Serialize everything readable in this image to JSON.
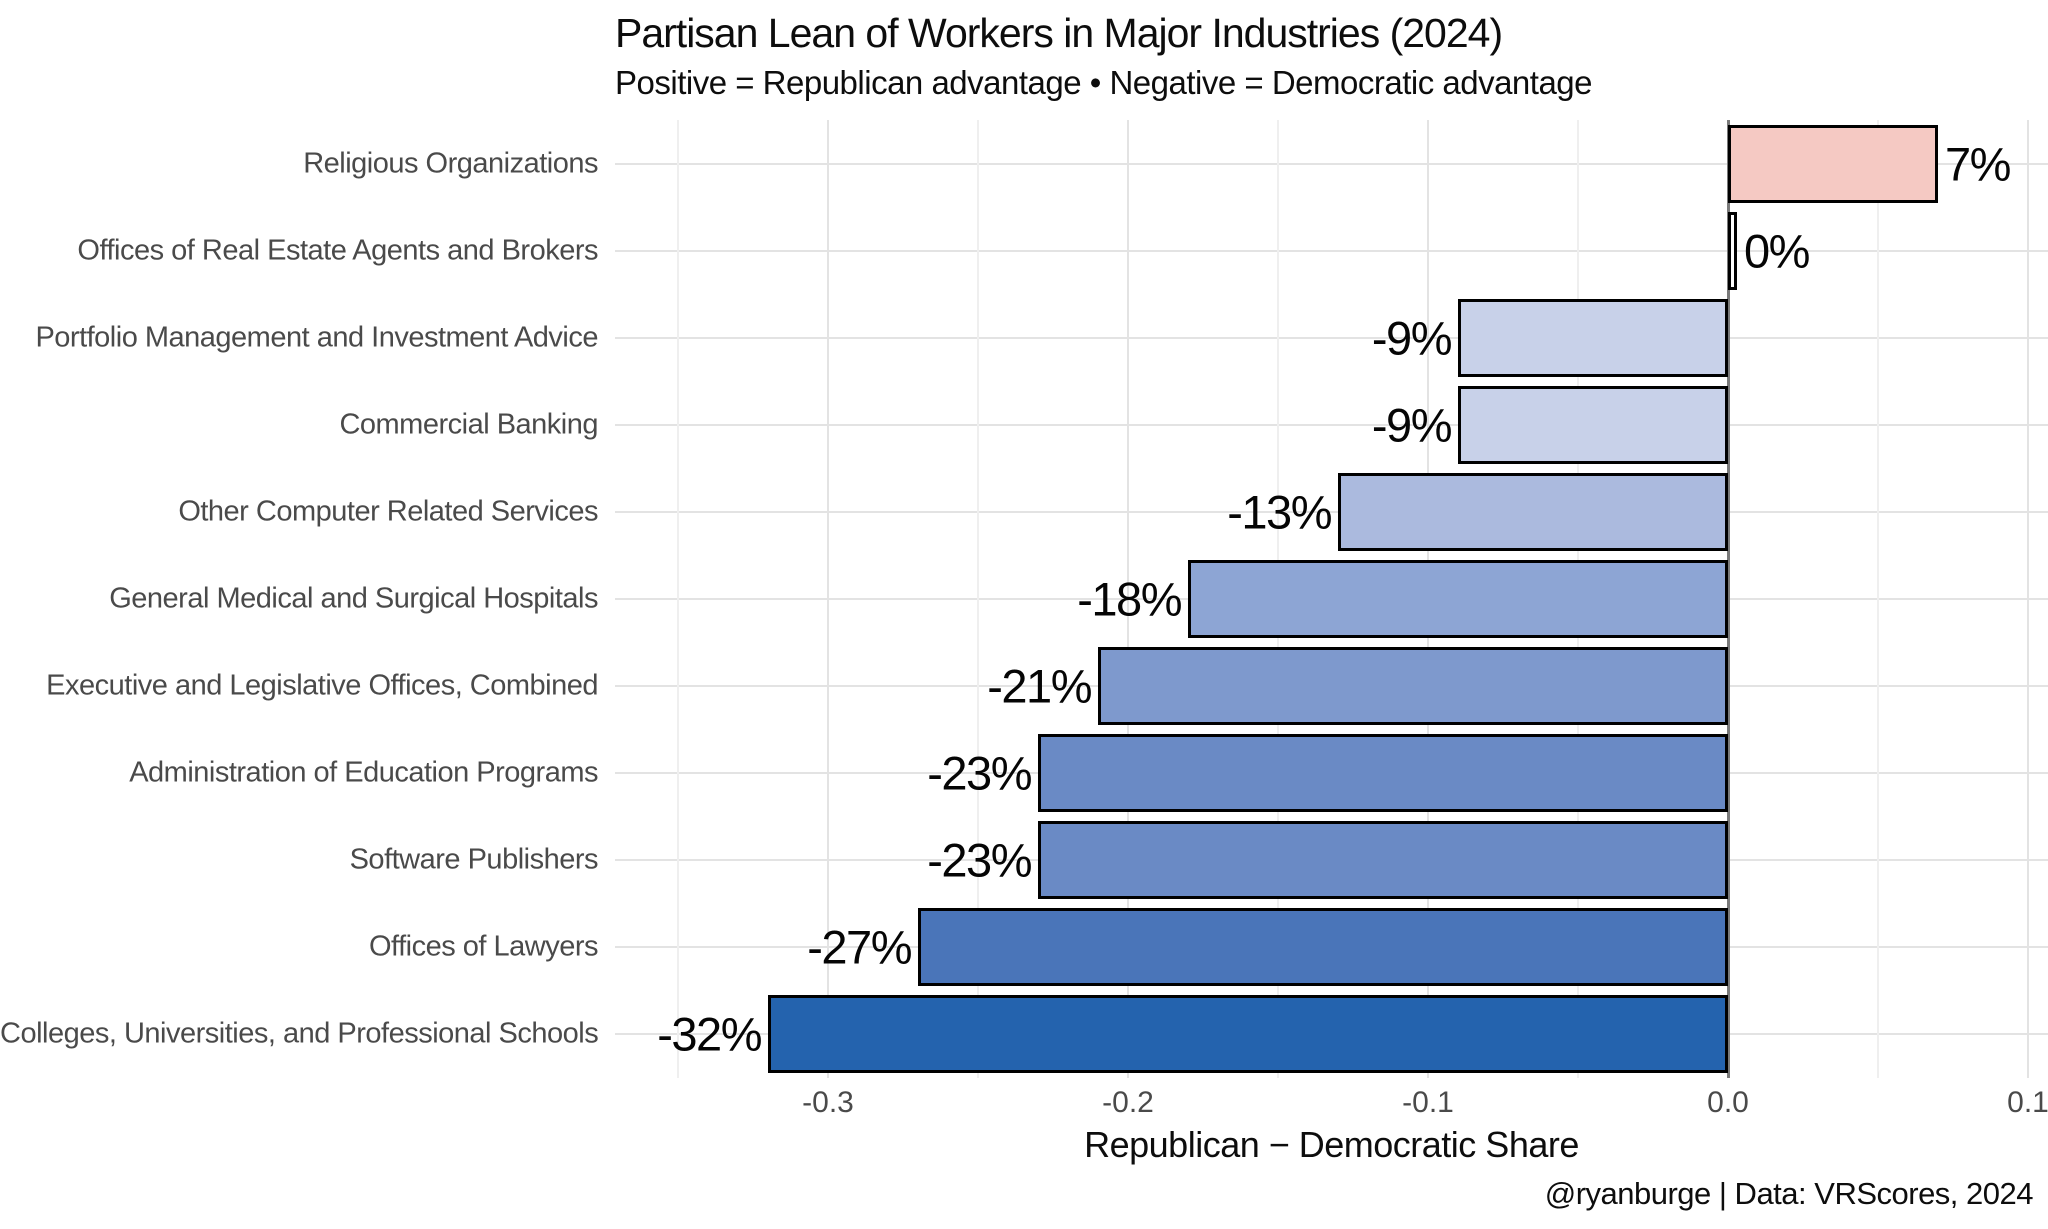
{
  "title": "Partisan Lean of Workers in Major Industries (2024)",
  "subtitle": "Positive = Republican advantage • Negative = Democratic advantage",
  "footer": "@ryanburge | Data: VRScores, 2024",
  "colors": {
    "background": "#ffffff",
    "grid_major": "#e3e3e3",
    "grid_minor": "#efefef",
    "zero_line": "#7a7a7a",
    "bar_outline": "#000000",
    "axis_text": "#4a4a4a",
    "text": "#0d0d0d",
    "republican_pink": "#f5c9c3",
    "democratic_blue_dark": "#2463ae"
  },
  "chart_data": {
    "type": "bar",
    "orientation": "horizontal",
    "title": "Partisan Lean of Workers in Major Industries (2024)",
    "subtitle": "Positive = Republican advantage • Negative = Democratic advantage",
    "xlabel": "Republican − Democratic Share",
    "ylabel": "",
    "xlim": [
      -0.371,
      0.107
    ],
    "x_major_ticks": [
      -0.3,
      -0.2,
      -0.1,
      0.0,
      0.1
    ],
    "x_tick_labels": [
      "-0.3",
      "-0.2",
      "-0.1",
      "0.0",
      "0.1"
    ],
    "x_minor_ticks": [
      -0.35,
      -0.25,
      -0.15,
      -0.05,
      0.05
    ],
    "grid": true,
    "legend": false,
    "zero_line": 0,
    "bars": [
      {
        "category": "Religious Organizations",
        "value": 0.07,
        "label": "7%",
        "color": "#f5c9c3"
      },
      {
        "category": "Offices of Real Estate Agents and Brokers",
        "value": 0.003,
        "label": "0%",
        "color": "#ffffff"
      },
      {
        "category": "Portfolio Management and Investment Advice",
        "value": -0.09,
        "label": "-9%",
        "color": "#c8d1e9"
      },
      {
        "category": "Commercial Banking",
        "value": -0.09,
        "label": "-9%",
        "color": "#c8d1e9"
      },
      {
        "category": "Other Computer Related Services",
        "value": -0.13,
        "label": "-13%",
        "color": "#abbade"
      },
      {
        "category": "General Medical and Surgical Hospitals",
        "value": -0.18,
        "label": "-18%",
        "color": "#8da5d4"
      },
      {
        "category": "Executive and Legislative Offices, Combined",
        "value": -0.21,
        "label": "-21%",
        "color": "#7e99cd"
      },
      {
        "category": "Administration of Education Programs",
        "value": -0.23,
        "label": "-23%",
        "color": "#6a8ac5"
      },
      {
        "category": "Software Publishers",
        "value": -0.23,
        "label": "-23%",
        "color": "#6a8ac5"
      },
      {
        "category": "Offices of Lawyers",
        "value": -0.27,
        "label": "-27%",
        "color": "#4a75b9"
      },
      {
        "category": "Colleges, Universities, and Professional Schools",
        "value": -0.32,
        "label": "-32%",
        "color": "#2463ae"
      }
    ]
  }
}
